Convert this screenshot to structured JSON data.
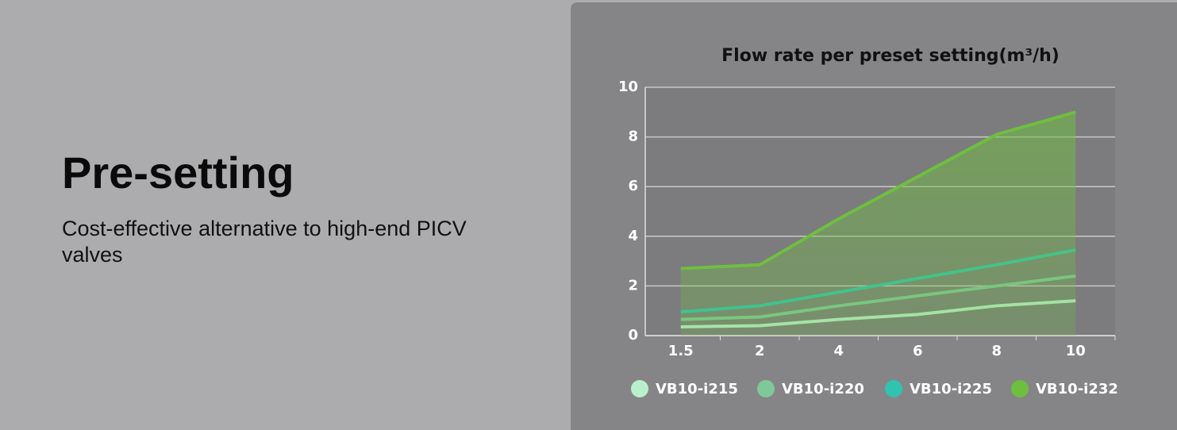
{
  "header": {
    "title": "Pre-setting",
    "description": "Cost-effective alternative to high-end PICV valves"
  },
  "chart_data": {
    "type": "line",
    "title": "Flow rate per preset setting(m³/h)",
    "categories": [
      "1.5",
      "2",
      "4",
      "6",
      "8",
      "10"
    ],
    "series": [
      {
        "name": "VB10-i215",
        "color": "#b9f0cc",
        "values": [
          0.35,
          0.4,
          0.65,
          0.85,
          1.2,
          1.4
        ]
      },
      {
        "name": "VB10-i220",
        "color": "#7fc89a",
        "values": [
          0.65,
          0.75,
          1.2,
          1.6,
          2.0,
          2.4
        ]
      },
      {
        "name": "VB10-i225",
        "color": "#2ec4b0",
        "values": [
          0.95,
          1.2,
          1.75,
          2.3,
          2.85,
          3.45
        ]
      },
      {
        "name": "VB10-i232",
        "color": "#6fbf3f",
        "values": [
          2.7,
          2.85,
          4.7,
          6.4,
          8.1,
          9.0
        ],
        "area": true
      }
    ],
    "ylim": [
      0,
      10
    ],
    "yticks": [
      0,
      2,
      4,
      6,
      8,
      10
    ],
    "grid": true,
    "legend": "bottom"
  }
}
